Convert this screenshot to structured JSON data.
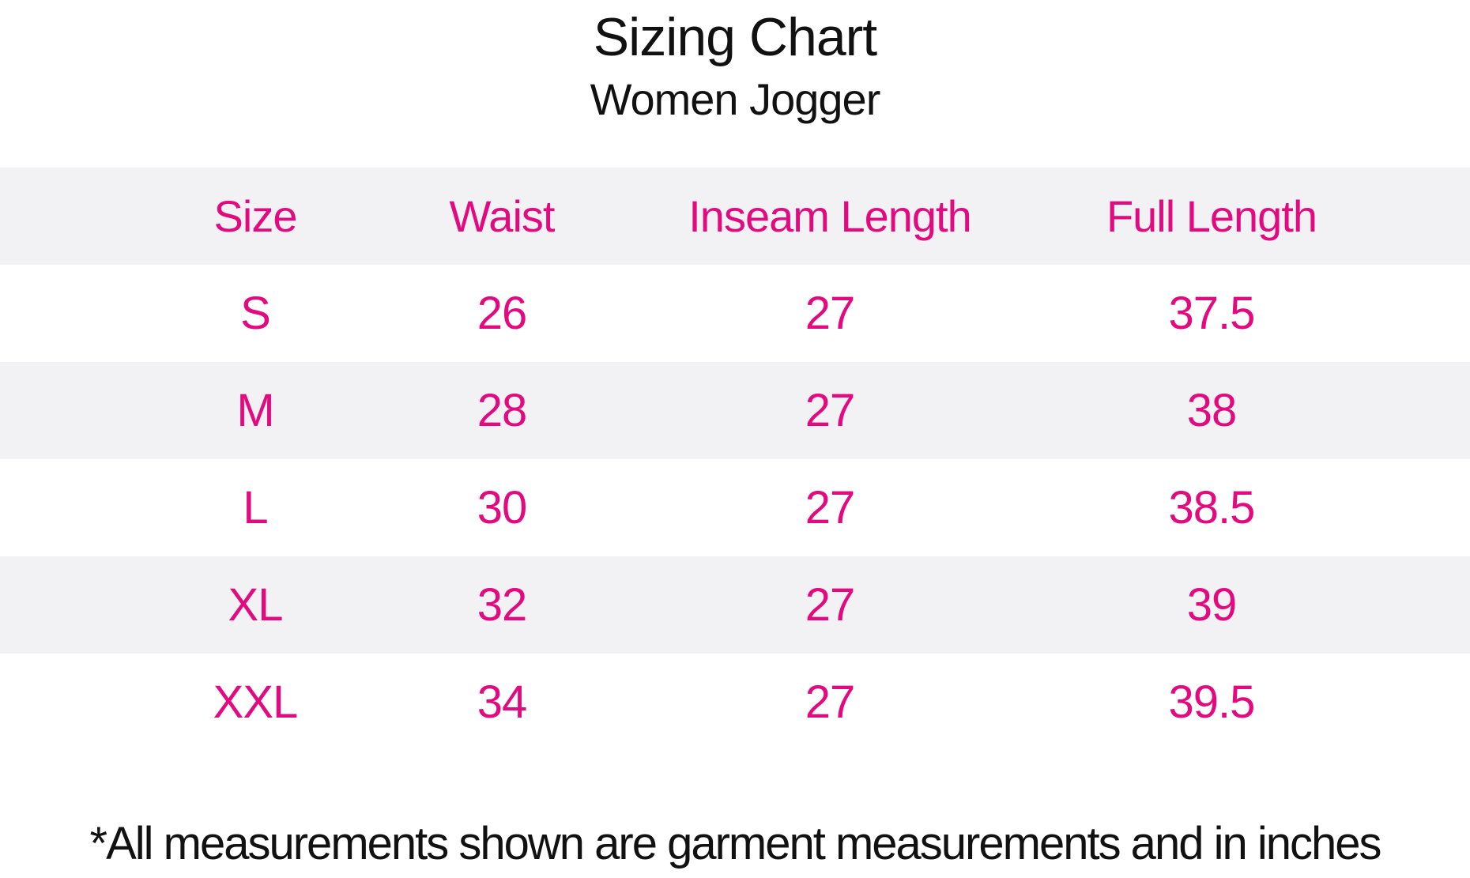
{
  "title": "Sizing Chart",
  "subtitle": "Women Jogger",
  "table": {
    "columns": [
      "Size",
      "Waist",
      "Inseam Length",
      "Full Length"
    ],
    "rows": [
      {
        "size": "S",
        "waist": "26",
        "inseam": "27",
        "full_length": "37.5"
      },
      {
        "size": "M",
        "waist": "28",
        "inseam": "27",
        "full_length": "38"
      },
      {
        "size": "L",
        "waist": "30",
        "inseam": "27",
        "full_length": "38.5"
      },
      {
        "size": "XL",
        "waist": "32",
        "inseam": "27",
        "full_length": "39"
      },
      {
        "size": "XXL",
        "waist": "34",
        "inseam": "27",
        "full_length": "39.5"
      }
    ]
  },
  "footnote": "*All measurements shown are garment measurements and in inches",
  "colors": {
    "accent_pink": "#e3097f",
    "row_stripe": "#f2f2f4",
    "text": "#111111",
    "background": "#ffffff"
  },
  "chart_data": {
    "type": "table",
    "title": "Sizing Chart",
    "subtitle": "Women Jogger",
    "columns": [
      "Size",
      "Waist",
      "Inseam Length",
      "Full Length"
    ],
    "rows": [
      [
        "S",
        26,
        27,
        37.5
      ],
      [
        "M",
        28,
        27,
        38
      ],
      [
        "L",
        30,
        27,
        38.5
      ],
      [
        "XL",
        32,
        27,
        39
      ],
      [
        "XXL",
        34,
        27,
        39.5
      ]
    ],
    "units": "inches",
    "footnote": "*All measurements shown are garment measurements and in inches",
    "layout": {
      "striped_rows": [
        "header",
        "M",
        "XL"
      ],
      "stripe_color": "#f2f2f4",
      "text_color": "#e3097f"
    }
  }
}
